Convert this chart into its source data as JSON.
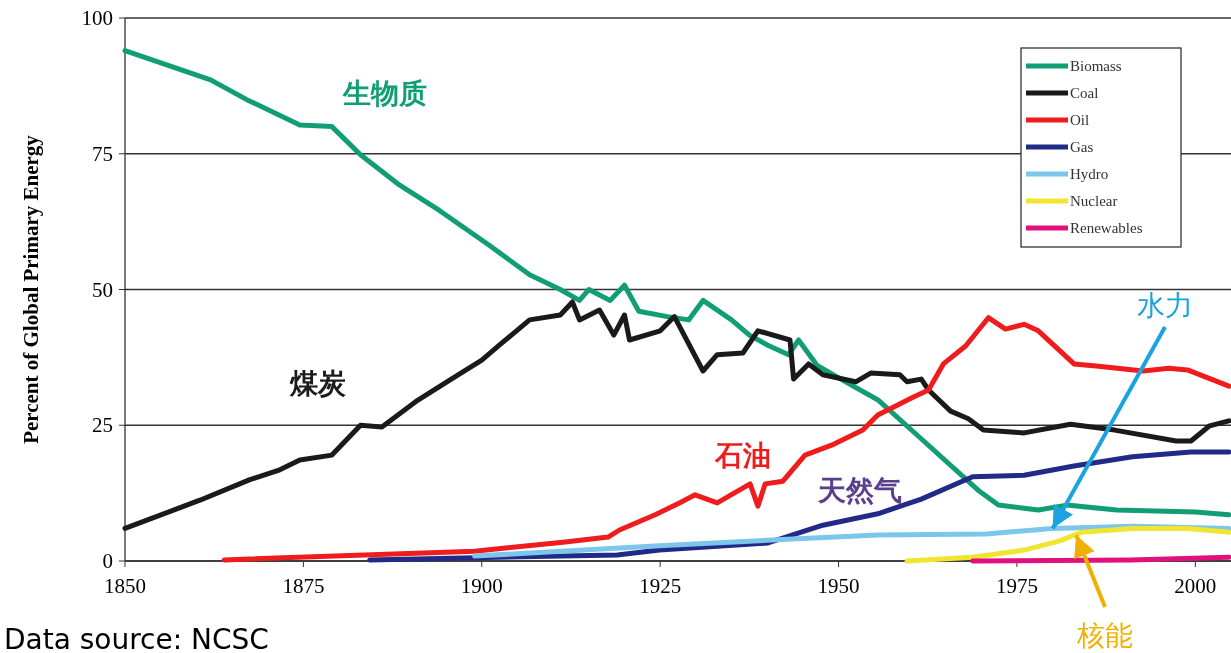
{
  "chart_data": {
    "type": "line",
    "ylabel": "Percent of Global Primary Energy",
    "xlim": [
      1850,
      2005
    ],
    "xticks": [
      1850,
      1875,
      1900,
      1925,
      1950,
      1975,
      2000
    ],
    "ylim": [
      0,
      100
    ],
    "yticks": [
      0,
      25,
      50,
      75,
      100
    ],
    "grid": "y",
    "legend": "top right",
    "line_style": "solid",
    "marker": "none",
    "series": [
      {
        "name": "Biomass",
        "color": "#119e74",
        "x": [
          1850,
          1862,
          1867,
          1874.5,
          1879,
          1883,
          1888.5,
          1894,
          1901,
          1906.7,
          1911,
          1913.7,
          1915,
          1918,
          1920,
          1922,
          1926,
          1929,
          1931,
          1935,
          1937.5,
          1940,
          1943,
          1944.4,
          1947,
          1951,
          1955.6,
          1961,
          1969.6,
          1972.4,
          1978,
          1982,
          1989,
          2000,
          2004.7
        ],
        "values": [
          94,
          88.6,
          85,
          80.3,
          80,
          74.8,
          69.2,
          64.6,
          58.2,
          52.7,
          50,
          48,
          50,
          48,
          50.8,
          46,
          45,
          44.4,
          48,
          44.4,
          41.6,
          39.8,
          38,
          40.7,
          36,
          33,
          29.6,
          23.2,
          13,
          10.3,
          9.4,
          10.3,
          9.4,
          9,
          8.5
        ]
      },
      {
        "name": "Coal",
        "color": "#1a1a1a",
        "x": [
          1850,
          1860.5,
          1867.5,
          1871.7,
          1874.5,
          1879,
          1883,
          1886,
          1891,
          1895.5,
          1900,
          1902.5,
          1906.7,
          1911,
          1912.7,
          1913.7,
          1916.5,
          1918.5,
          1920,
          1920.7,
          1925,
          1927,
          1931,
          1933,
          1936.6,
          1938.7,
          1943.2,
          1943.7,
          1945.8,
          1947.8,
          1952.4,
          1954.5,
          1958.6,
          1959.6,
          1961.6,
          1962.6,
          1965.7,
          1968.2,
          1970.3,
          1976,
          1982.5,
          1988.7,
          1997.3,
          1999.4,
          2002,
          2004.7
        ],
        "values": [
          6,
          11.2,
          15,
          16.8,
          18.6,
          19.5,
          25,
          24.7,
          29.6,
          33.3,
          37,
          39.8,
          44.4,
          45.3,
          47.7,
          44.4,
          46.2,
          41.6,
          45.3,
          40.7,
          42.4,
          45,
          35,
          38,
          38.3,
          42.4,
          40.7,
          33.5,
          36.3,
          34.3,
          33,
          34.6,
          34.3,
          33,
          33.5,
          31.5,
          27.6,
          26.2,
          24.1,
          23.6,
          25.2,
          24.1,
          22.1,
          22.1,
          24.9,
          25.8
        ]
      },
      {
        "name": "Oil",
        "color": "#ee1c1c",
        "x": [
          1863.9,
          1899,
          1911.7,
          1917.7,
          1919.3,
          1924.3,
          1927.7,
          1929.9,
          1933,
          1937.6,
          1938.7,
          1939.7,
          1942.2,
          1945.3,
          1949.3,
          1953.4,
          1955.5,
          1960.5,
          1962.6,
          1964.7,
          1967.8,
          1971,
          1973.4,
          1976,
          1978,
          1983,
          1986.1,
          1992.7,
          1996.3,
          1998.9,
          2004.7
        ],
        "values": [
          0.2,
          1.8,
          3.5,
          4.4,
          5.7,
          8.5,
          10.7,
          12.2,
          10.7,
          14.2,
          10.1,
          14.2,
          14.7,
          19.5,
          21.5,
          24.1,
          26.9,
          30.2,
          31.5,
          36.3,
          39.6,
          44.8,
          42.7,
          43.6,
          42.4,
          36.3,
          35.9,
          35,
          35.5,
          35.2,
          32.2
        ]
      },
      {
        "name": "Gas",
        "color": "#222a87",
        "x": [
          1884.3,
          1899,
          1919,
          1924.9,
          1940,
          1947.8,
          1955.5,
          1961.6,
          1968.8,
          1976,
          1983,
          1991.2,
          1999.4,
          2004.7
        ],
        "values": [
          0.2,
          0.6,
          1.1,
          2,
          3.3,
          6.6,
          8.7,
          11.4,
          15.5,
          15.8,
          17.5,
          19.2,
          20.1,
          20.1
        ]
      },
      {
        "name": "Hydro",
        "color": "#7cc6ec",
        "x": [
          1899,
          1924.9,
          1942.8,
          1955.5,
          1970.7,
          1980,
          1991.2,
          2004.7
        ],
        "values": [
          0.9,
          2.8,
          4,
          4.8,
          5,
          6,
          6.4,
          6
        ]
      },
      {
        "name": "Nuclear",
        "color": "#f0e530",
        "x": [
          1959.6,
          1968.8,
          1976,
          1981,
          1984,
          1991.2,
          1998.9,
          2004.7
        ],
        "values": [
          0,
          0.7,
          2,
          3.7,
          5.3,
          6,
          6,
          5.3
        ]
      },
      {
        "name": "Renewables",
        "color": "#e0117c",
        "x": [
          1968.8,
          1991,
          2004.7
        ],
        "values": [
          0,
          0.2,
          0.7
        ]
      }
    ],
    "annotations": [
      "生物质",
      "煤炭",
      "石油",
      "天然气",
      {
        "text": "水力",
        "x": 1980,
        "y": 6
      },
      {
        "text": "核能",
        "x": 1983.3,
        "y": 4.8
      },
      "Data source: NCSC"
    ]
  }
}
